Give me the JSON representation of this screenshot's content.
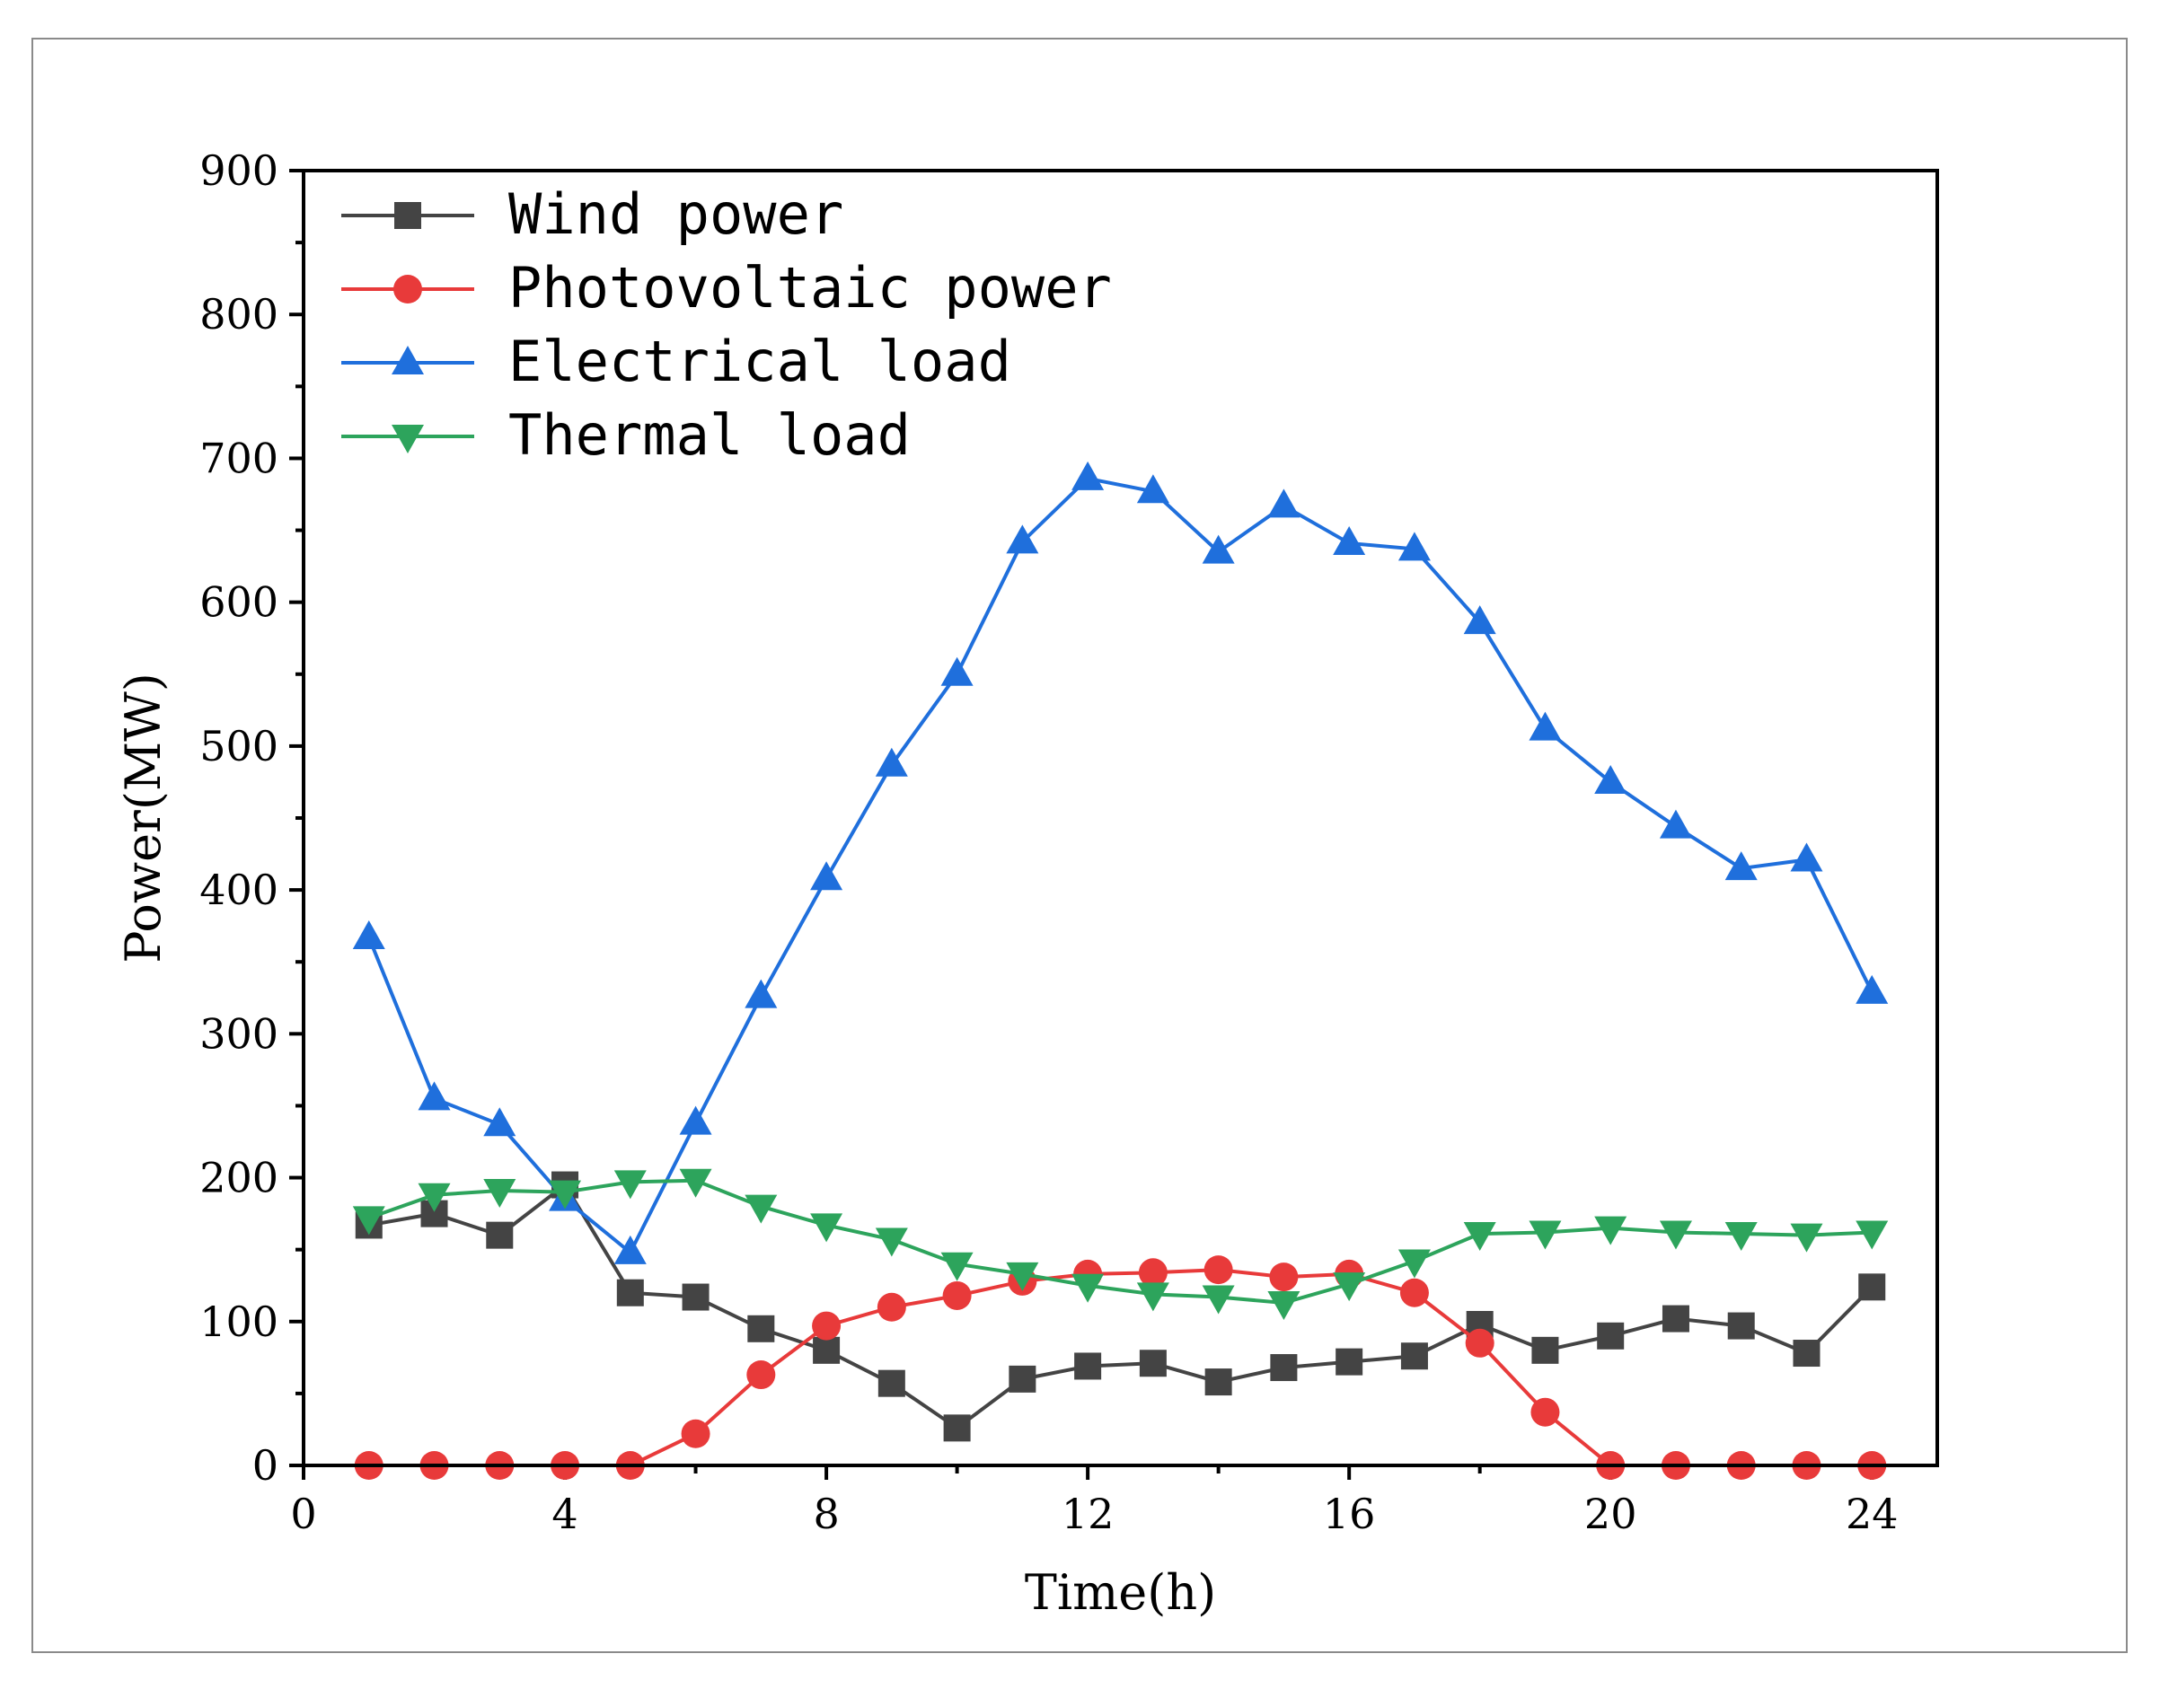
{
  "chart_data": {
    "type": "line",
    "title": "",
    "xlabel": "Time(h)",
    "ylabel": "Power(MW)",
    "xlim": [
      0,
      25
    ],
    "ylim": [
      0,
      900
    ],
    "xticks": [
      0,
      4,
      8,
      12,
      16,
      20,
      24
    ],
    "yticks": [
      0,
      100,
      200,
      300,
      400,
      500,
      600,
      700,
      800,
      900
    ],
    "legend_position": "top-left",
    "x": [
      1,
      2,
      3,
      4,
      5,
      6,
      7,
      8,
      9,
      10,
      11,
      12,
      13,
      14,
      15,
      16,
      17,
      18,
      19,
      20,
      21,
      22,
      23,
      24
    ],
    "series": [
      {
        "name": "Wind power",
        "color": "#444444",
        "marker": "square",
        "values": [
          167,
          175,
          160,
          195,
          120,
          117,
          95,
          80,
          57,
          26,
          60,
          69,
          71,
          58,
          68,
          72,
          76,
          98,
          80,
          90,
          102,
          97,
          78,
          124
        ]
      },
      {
        "name": "Photovoltaic power",
        "color": "#e83a3a",
        "marker": "circle",
        "values": [
          0,
          0,
          0,
          0,
          0,
          22,
          63,
          97,
          110,
          118,
          128,
          133,
          134,
          136,
          131,
          133,
          120,
          85,
          37,
          0,
          0,
          0,
          0,
          0
        ]
      },
      {
        "name": "Electrical load",
        "color": "#1f6fdc",
        "marker": "triangle-up",
        "values": [
          367,
          255,
          237,
          185,
          148,
          238,
          326,
          408,
          487,
          550,
          642,
          686,
          677,
          635,
          667,
          641,
          637,
          586,
          512,
          475,
          444,
          415,
          421,
          329
        ]
      },
      {
        "name": "Thermal load",
        "color": "#2da45c",
        "marker": "triangle-down",
        "values": [
          172,
          188,
          191,
          190,
          197,
          198,
          180,
          167,
          157,
          140,
          133,
          125,
          119,
          117,
          113,
          126,
          142,
          161,
          162,
          165,
          162,
          161,
          160,
          162
        ]
      }
    ]
  }
}
